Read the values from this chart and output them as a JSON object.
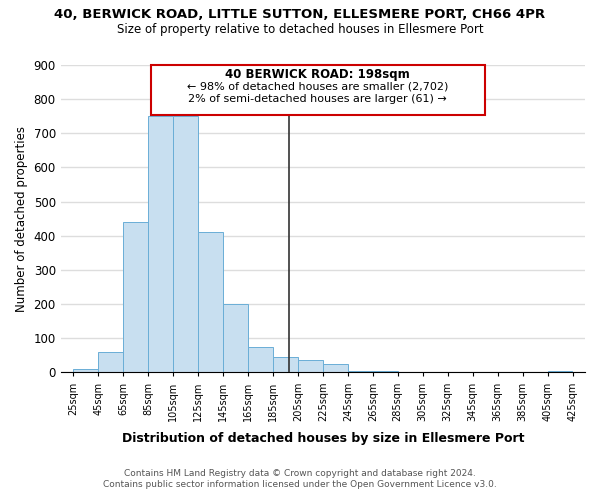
{
  "title": "40, BERWICK ROAD, LITTLE SUTTON, ELLESMERE PORT, CH66 4PR",
  "subtitle": "Size of property relative to detached houses in Ellesmere Port",
  "xlabel": "Distribution of detached houses by size in Ellesmere Port",
  "ylabel": "Number of detached properties",
  "bar_color": "#c8dff0",
  "bar_edge_color": "#6aaed6",
  "bins": [
    25,
    45,
    65,
    85,
    105,
    125,
    145,
    165,
    185,
    205,
    225,
    245,
    265,
    285,
    305,
    325,
    345,
    365,
    385,
    405,
    425
  ],
  "heights": [
    10,
    60,
    440,
    750,
    750,
    410,
    200,
    75,
    45,
    35,
    25,
    5,
    5,
    0,
    0,
    0,
    0,
    0,
    0,
    5
  ],
  "tick_labels": [
    "25sqm",
    "45sqm",
    "65sqm",
    "85sqm",
    "105sqm",
    "125sqm",
    "145sqm",
    "165sqm",
    "185sqm",
    "205sqm",
    "225sqm",
    "245sqm",
    "265sqm",
    "285sqm",
    "305sqm",
    "325sqm",
    "345sqm",
    "365sqm",
    "385sqm",
    "405sqm",
    "425sqm"
  ],
  "ylim": [
    0,
    900
  ],
  "yticks": [
    0,
    100,
    200,
    300,
    400,
    500,
    600,
    700,
    800,
    900
  ],
  "property_line_x": 198,
  "property_line_color": "#333333",
  "annotation_title": "40 BERWICK ROAD: 198sqm",
  "annotation_line1": "← 98% of detached houses are smaller (2,702)",
  "annotation_line2": "2% of semi-detached houses are larger (61) →",
  "annotation_box_edge_color": "#cc0000",
  "background_color": "#ffffff",
  "grid_color": "#dddddd",
  "footer1": "Contains HM Land Registry data © Crown copyright and database right 2024.",
  "footer2": "Contains public sector information licensed under the Open Government Licence v3.0."
}
